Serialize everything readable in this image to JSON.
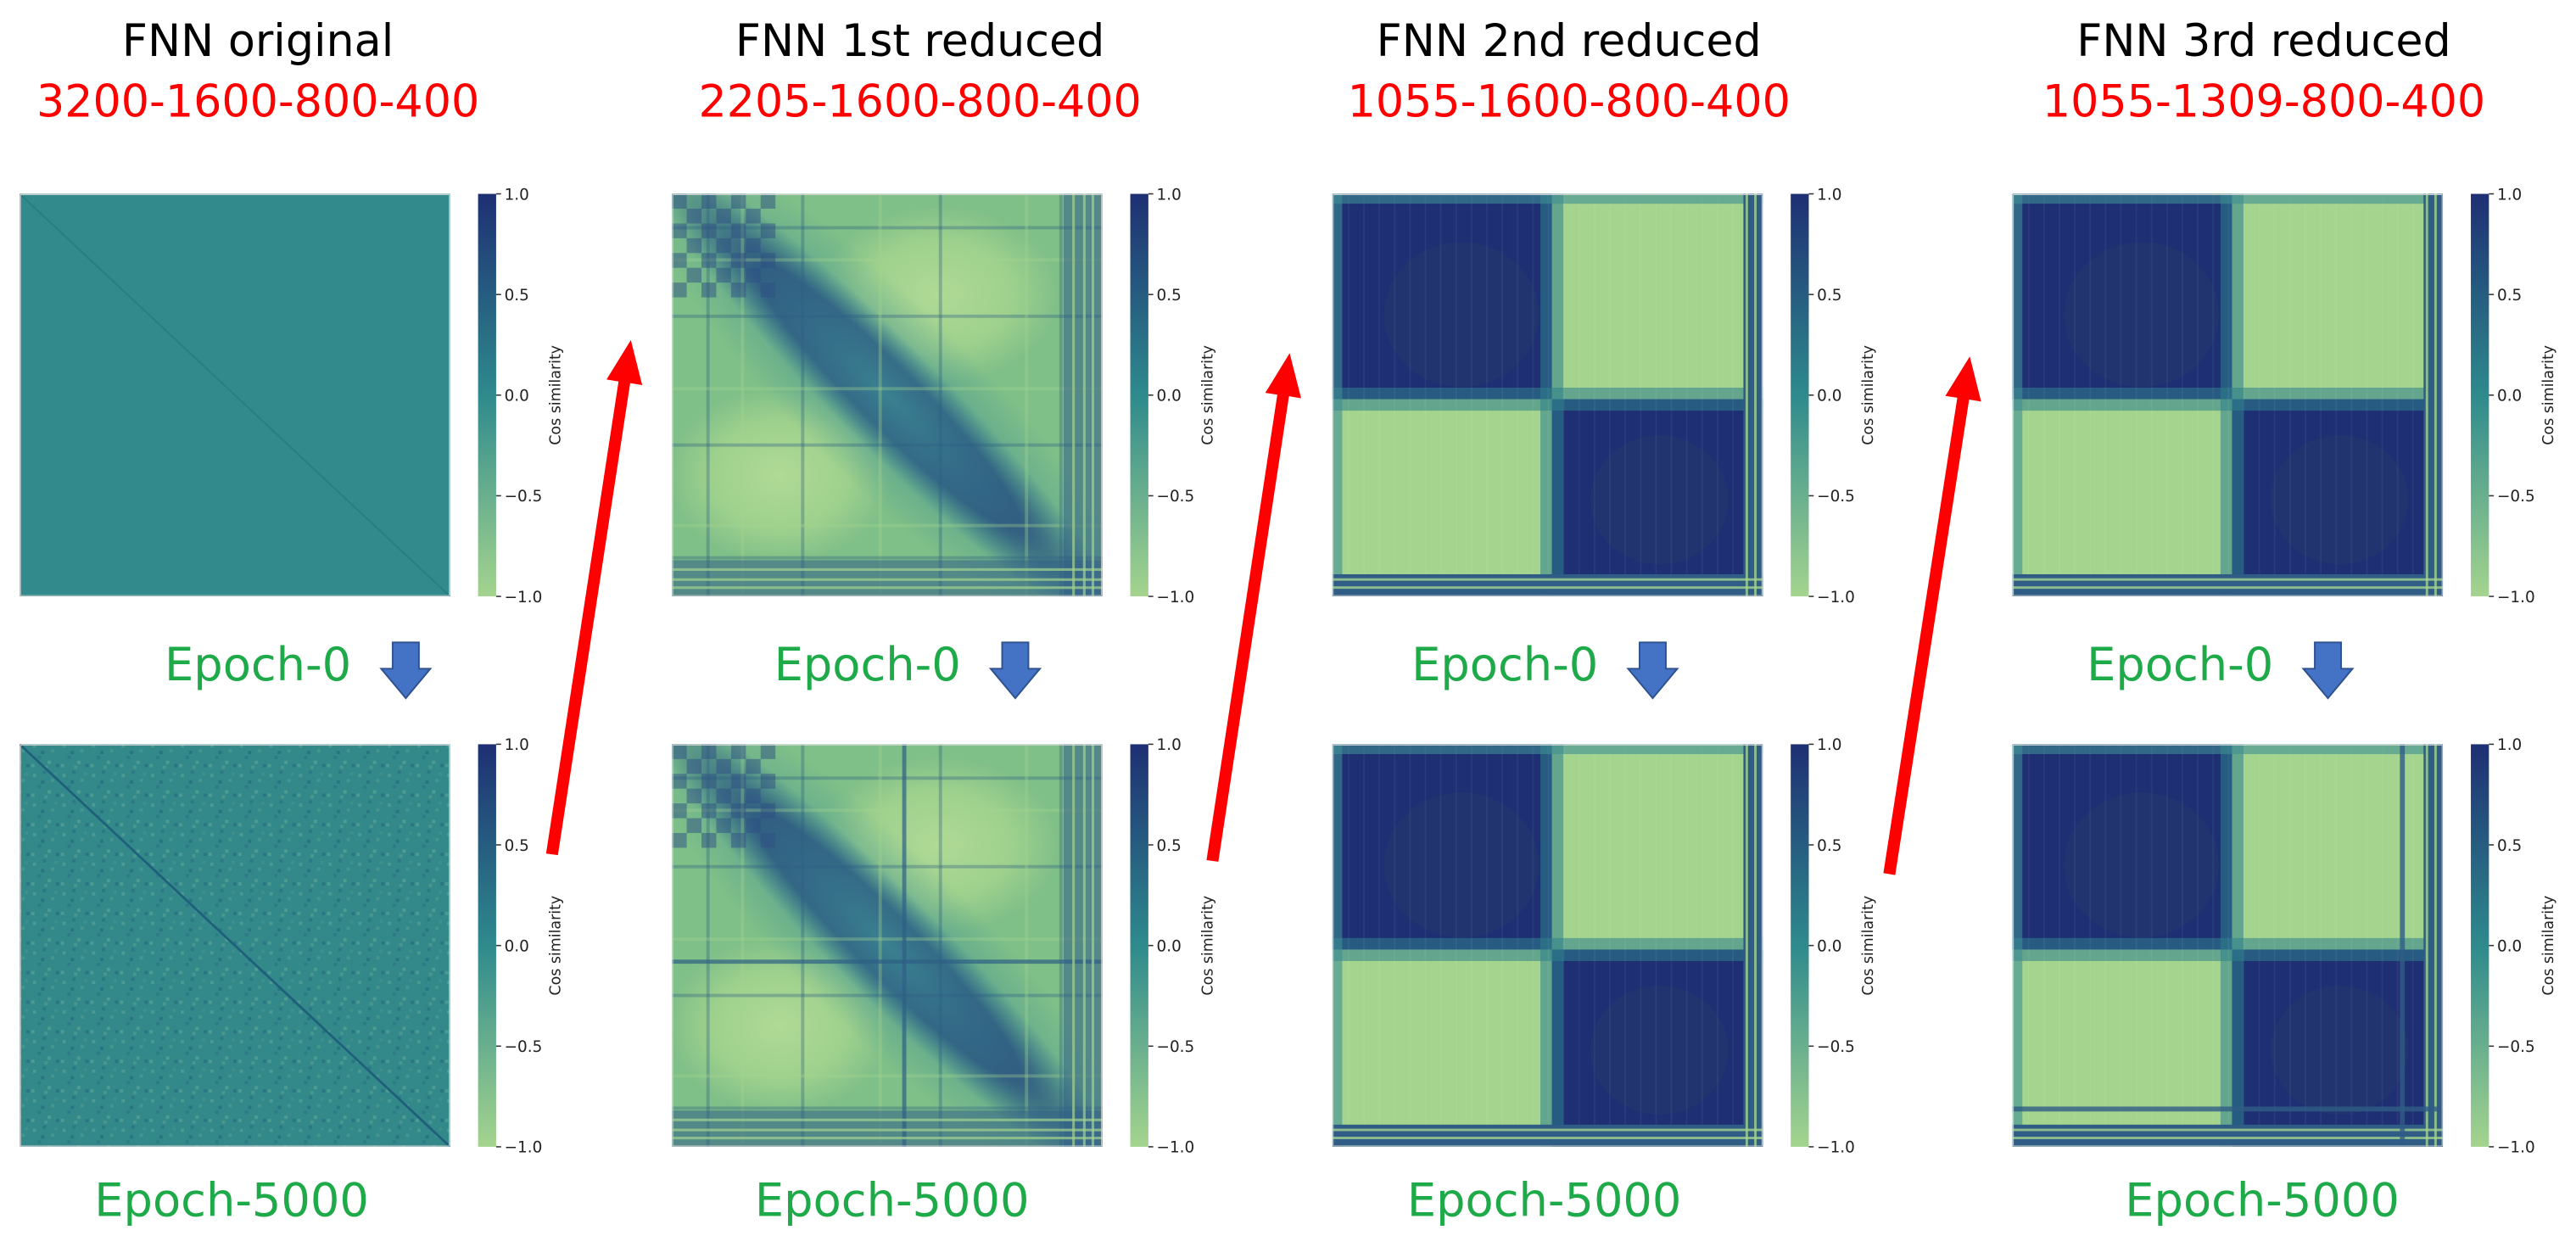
{
  "panels": [
    {
      "title": "FNN original",
      "architecture": "3200-1600-800-400",
      "epoch0_pattern": "uniform",
      "epoch5000_pattern": "noise"
    },
    {
      "title": "FNN 1st reduced",
      "architecture": "2205-1600-800-400",
      "epoch0_pattern": "gradient-diagonal",
      "epoch5000_pattern": "gradient-diagonal-banded"
    },
    {
      "title": "FNN 2nd reduced",
      "architecture": "1055-1600-800-400",
      "epoch0_pattern": "two-block",
      "epoch5000_pattern": "two-block"
    },
    {
      "title": "FNN 3rd reduced",
      "architecture": "1055-1309-800-400",
      "epoch0_pattern": "two-block",
      "epoch5000_pattern": "two-block-banded"
    }
  ],
  "epoch_labels": {
    "start": "Epoch-0",
    "end": "Epoch-5000"
  },
  "colorbar": {
    "label": "Cos similarity",
    "ticks": [
      "1.0",
      "0.5",
      "0.0",
      "−0.5",
      "−1.0"
    ],
    "range": [
      -1.0,
      1.0
    ]
  },
  "colors": {
    "title": "#000000",
    "architecture": "#ff0000",
    "epoch_label": "#1faa4a",
    "down_arrow": "#4472c4",
    "red_arrow": "#ff0000",
    "cmap_low": "#a4d48e",
    "cmap_mid": "#2e8a8d",
    "cmap_high": "#1e2f73"
  },
  "icons": {
    "down_arrow": "arrow-down-icon",
    "progression_arrow": "red-arrow-icon"
  }
}
